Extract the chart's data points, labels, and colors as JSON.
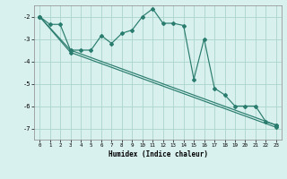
{
  "xlabel": "Humidex (Indice chaleur)",
  "ylabel": "",
  "xlim": [
    -0.5,
    23.5
  ],
  "ylim": [
    -7.5,
    -1.5
  ],
  "yticks": [
    -7,
    -6,
    -5,
    -4,
    -3,
    -2
  ],
  "xticks": [
    0,
    1,
    2,
    3,
    4,
    5,
    6,
    7,
    8,
    9,
    10,
    11,
    12,
    13,
    14,
    15,
    16,
    17,
    18,
    19,
    20,
    21,
    22,
    23
  ],
  "bg_color": "#d8f0ee",
  "line_color": "#2a7d6e",
  "grid_color": "#aad4cc",
  "line1_x": [
    0,
    1,
    2,
    3,
    4,
    5,
    6,
    7,
    8,
    9,
    10,
    11,
    12,
    13,
    14,
    15,
    16,
    17,
    18,
    19,
    20,
    21,
    22,
    23
  ],
  "line1_y": [
    -2.0,
    -2.35,
    -2.35,
    -3.5,
    -3.5,
    -3.5,
    -2.85,
    -3.2,
    -2.75,
    -2.6,
    -2.0,
    -1.65,
    -2.3,
    -2.3,
    -2.4,
    -4.8,
    -3.0,
    -5.2,
    -5.5,
    -6.0,
    -6.0,
    -6.0,
    -6.7,
    -6.85
  ],
  "line2_x": [
    0,
    3,
    23
  ],
  "line2_y": [
    -2.0,
    -3.5,
    -6.85
  ],
  "line3_x": [
    0,
    3,
    23
  ],
  "line3_y": [
    -2.0,
    -3.6,
    -6.95
  ],
  "figwidth": 3.2,
  "figheight": 2.0,
  "dpi": 100
}
